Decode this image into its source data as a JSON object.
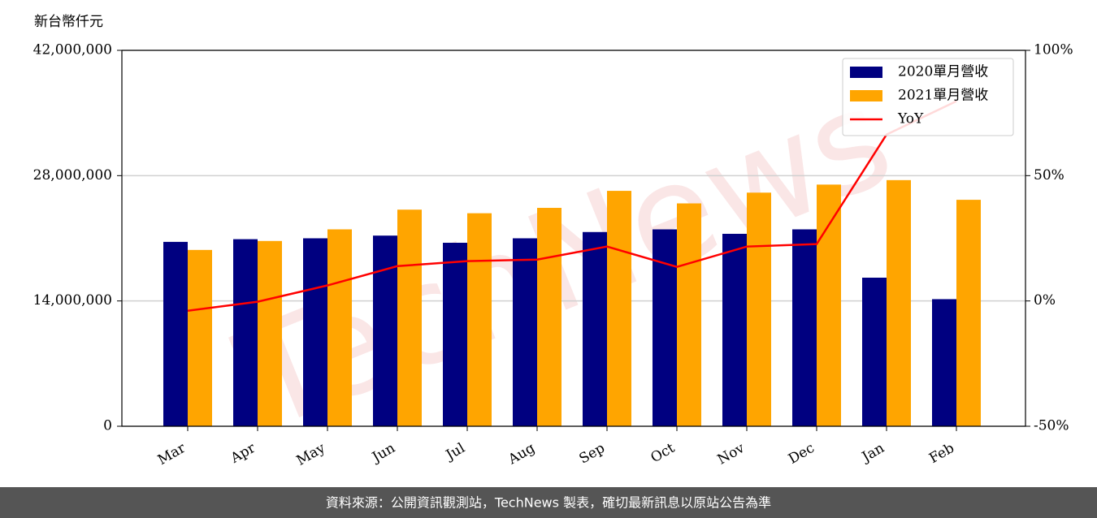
{
  "chart_data": {
    "type": "bar",
    "y_label": "新台幣仟元",
    "watermark": "TechNews",
    "footer": "資料來源：公開資訊觀測站，TechNews 製表，確切最新訊息以原站公告為準",
    "categories": [
      "Mar",
      "Apr",
      "May",
      "Jun",
      "Jul",
      "Aug",
      "Sep",
      "Oct",
      "Nov",
      "Dec",
      "Jan",
      "Feb"
    ],
    "series": [
      {
        "name": "2020單月營收",
        "type": "bar",
        "color": "#000080",
        "values": [
          20600000,
          20900000,
          21000000,
          21300000,
          20500000,
          21000000,
          21700000,
          22000000,
          21500000,
          22000000,
          16600000,
          14200000
        ]
      },
      {
        "name": "2021單月營收",
        "type": "bar",
        "color": "#ffa500",
        "values": [
          19700000,
          20700000,
          22000000,
          24200000,
          23800000,
          24400000,
          26300000,
          24900000,
          26100000,
          27000000,
          27500000,
          25300000
        ]
      },
      {
        "name": "YoY",
        "type": "line",
        "axis": "y2",
        "color": "#ff0000",
        "values": [
          -3.9,
          -0.3,
          6.2,
          13.9,
          15.9,
          16.5,
          21.7,
          13.6,
          21.7,
          22.7,
          66.4,
          79.7
        ]
      }
    ],
    "ylim": [
      0,
      42000000
    ],
    "yticks": [
      0,
      {
        "value": 14000000,
        "label": "14,000,000"
      },
      {
        "value": 28000000,
        "label": "28,000,000"
      },
      {
        "value": 42000000,
        "label": "42,000,000"
      }
    ],
    "y2lim": [
      -50,
      100
    ],
    "y2ticks": [
      {
        "value": -50,
        "label": "-50%"
      },
      {
        "value": 0,
        "label": "0%"
      },
      {
        "value": 50,
        "label": "50%"
      },
      {
        "value": 100,
        "label": "100%"
      }
    ],
    "grid": true,
    "legend": "upper right"
  }
}
